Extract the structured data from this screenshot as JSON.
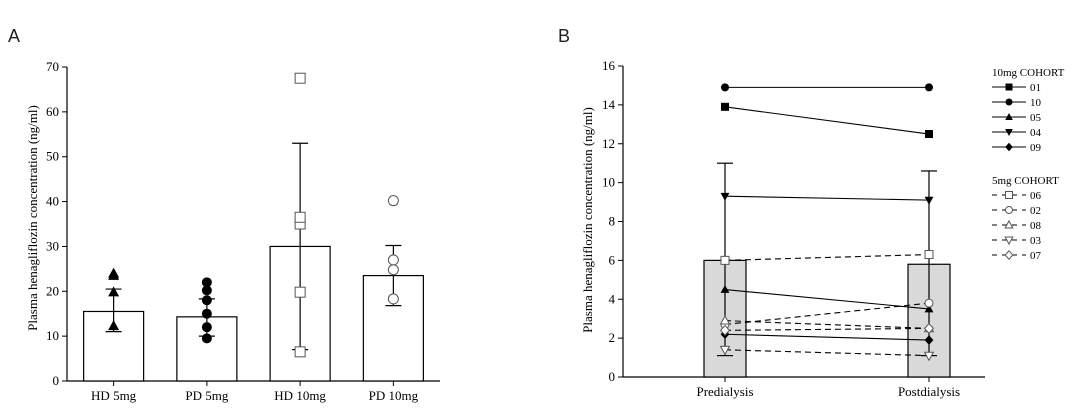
{
  "chart_data": [
    {
      "panel": "A",
      "type": "bar",
      "ylabel": "Plasma henagliflozin concentration (ng/ml)",
      "ylim": [
        0,
        70
      ],
      "yticks": [
        0,
        10,
        20,
        30,
        40,
        50,
        60,
        70
      ],
      "categories": [
        "HD 5mg",
        "PD 5mg",
        "HD 10mg",
        "PD 10mg"
      ],
      "bars": [
        {
          "mean": 15.5,
          "sd_upper": 20.5,
          "sd_lower": 11.0,
          "marker": "filled-triangle",
          "points": [
            12.3,
            19.8,
            23.5,
            24.0
          ]
        },
        {
          "mean": 14.3,
          "sd_upper": 18.3,
          "sd_lower": 10.0,
          "marker": "filled-circle",
          "points": [
            9.5,
            12.0,
            15.0,
            18.0,
            20.2,
            22.0
          ]
        },
        {
          "mean": 30.0,
          "sd_upper": 53.0,
          "sd_lower": 7.0,
          "marker": "open-square",
          "points": [
            6.5,
            19.8,
            35.0,
            36.5,
            67.5
          ]
        },
        {
          "mean": 23.5,
          "sd_upper": 30.2,
          "sd_lower": 16.8,
          "marker": "open-circle",
          "points": [
            18.3,
            24.8,
            27.0,
            40.2
          ]
        }
      ]
    },
    {
      "panel": "B",
      "type": "line",
      "ylabel": "Plasma henagliflozin concentration (ng/ml)",
      "ylim": [
        0,
        16
      ],
      "yticks": [
        0,
        2,
        4,
        6,
        8,
        10,
        12,
        14,
        16
      ],
      "categories": [
        "Predialysis",
        "Postdialysis"
      ],
      "bars": [
        {
          "mean": 6.0,
          "sd_upper": 11.0,
          "sd_lower": 1.1
        },
        {
          "mean": 5.8,
          "sd_upper": 10.6,
          "sd_lower": 1.1
        }
      ],
      "legend_groups": [
        "10mg COHORT",
        "5mg COHORT"
      ],
      "series": [
        {
          "name": "01",
          "group": 0,
          "marker": "filled-square",
          "dashed": false,
          "values": [
            13.9,
            12.5
          ]
        },
        {
          "name": "10",
          "group": 0,
          "marker": "filled-circle",
          "dashed": false,
          "values": [
            14.9,
            14.9
          ]
        },
        {
          "name": "05",
          "group": 0,
          "marker": "filled-triangle",
          "dashed": false,
          "values": [
            4.5,
            3.5
          ]
        },
        {
          "name": "04",
          "group": 0,
          "marker": "filled-down-triangle",
          "dashed": false,
          "values": [
            9.3,
            9.1
          ]
        },
        {
          "name": "09",
          "group": 0,
          "marker": "filled-diamond",
          "dashed": false,
          "values": [
            2.2,
            1.9
          ]
        },
        {
          "name": "06",
          "group": 1,
          "marker": "open-square",
          "dashed": true,
          "values": [
            6.0,
            6.3
          ]
        },
        {
          "name": "02",
          "group": 1,
          "marker": "open-circle",
          "dashed": true,
          "values": [
            2.7,
            3.8
          ]
        },
        {
          "name": "08",
          "group": 1,
          "marker": "open-triangle",
          "dashed": true,
          "values": [
            2.9,
            2.5
          ]
        },
        {
          "name": "03",
          "group": 1,
          "marker": "open-down-triangle",
          "dashed": true,
          "values": [
            1.4,
            1.1
          ]
        },
        {
          "name": "07",
          "group": 1,
          "marker": "open-diamond",
          "dashed": true,
          "values": [
            2.4,
            2.5
          ]
        }
      ]
    }
  ]
}
